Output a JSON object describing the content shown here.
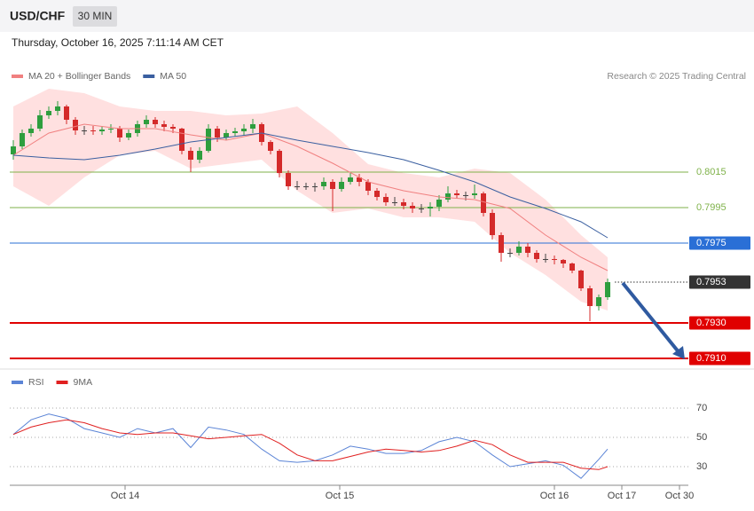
{
  "header": {
    "symbol": "USD/CHF",
    "interval": "30 MIN",
    "timestamp": "Thursday, October 16, 2025 7:11:14 AM CET"
  },
  "source": "Research © 2025 Trading Central",
  "chart_data": [
    {
      "type": "candlestick",
      "up_color": "#2e9e3e",
      "down_color": "#d42a2a",
      "flat_color": "#444444",
      "xlim": [
        -0.4,
        76.1
      ],
      "ylim": [
        0.7907,
        0.8062
      ],
      "x": [
        0,
        1,
        2,
        3,
        4,
        5,
        6,
        7,
        8,
        9,
        10,
        11,
        12,
        13,
        14,
        15,
        16,
        17,
        18,
        19,
        20,
        21,
        22,
        23,
        24,
        25,
        26,
        27,
        28,
        29,
        30,
        31,
        32,
        33,
        34,
        35,
        36,
        37,
        38,
        39,
        40,
        41,
        42,
        43,
        44,
        45,
        46,
        47,
        48,
        49,
        50,
        51,
        52,
        53,
        54,
        55,
        56,
        57,
        58,
        59,
        60,
        61,
        62,
        63,
        64,
        65,
        66,
        67
      ],
      "open": [
        0.8025,
        0.80295,
        0.8037,
        0.80395,
        0.8047,
        0.80495,
        0.8052,
        0.80445,
        0.80385,
        0.80385,
        0.8038,
        0.8039,
        0.80395,
        0.80345,
        0.8037,
        0.8042,
        0.80445,
        0.8042,
        0.80405,
        0.80395,
        0.8027,
        0.8022,
        0.8027,
        0.80395,
        0.80345,
        0.8037,
        0.8038,
        0.80395,
        0.8042,
        0.8032,
        0.8027,
        0.80145,
        0.8007,
        0.8007,
        0.8007,
        0.8007,
        0.80095,
        0.80055,
        0.80095,
        0.8012,
        0.80095,
        0.80045,
        0.8001,
        0.7998,
        0.7998,
        0.7996,
        0.79945,
        0.79945,
        0.79955,
        0.79995,
        0.8003,
        0.8002,
        0.8002,
        0.8003,
        0.7992,
        0.79795,
        0.79695,
        0.79695,
        0.7973,
        0.79695,
        0.7966,
        0.7966,
        0.79655,
        0.79635,
        0.79595,
        0.79495,
        0.79395,
        0.79445
      ],
      "high": [
        0.8033,
        0.8039,
        0.8042,
        0.805,
        0.8052,
        0.8055,
        0.8053,
        0.8046,
        0.8041,
        0.8041,
        0.8041,
        0.8042,
        0.8041,
        0.8039,
        0.8044,
        0.8047,
        0.8046,
        0.8044,
        0.8042,
        0.804,
        0.8029,
        0.8029,
        0.8042,
        0.8041,
        0.8039,
        0.804,
        0.8042,
        0.8045,
        0.8043,
        0.8033,
        0.8028,
        0.8016,
        0.801,
        0.8009,
        0.8009,
        0.8012,
        0.8011,
        0.8012,
        0.8015,
        0.8014,
        0.8011,
        0.8006,
        0.8003,
        0.8001,
        0.8,
        0.7998,
        0.7997,
        0.7998,
        0.8002,
        0.8007,
        0.8005,
        0.8004,
        0.8008,
        0.8004,
        0.7994,
        0.7981,
        0.7972,
        0.7976,
        0.7975,
        0.7971,
        0.7969,
        0.7968,
        0.7966,
        0.7964,
        0.796,
        0.7951,
        0.7946,
        0.7955
      ],
      "low": [
        0.8022,
        0.8028,
        0.8035,
        0.8038,
        0.8045,
        0.8047,
        0.8042,
        0.8036,
        0.8036,
        0.8036,
        0.8036,
        0.8037,
        0.8032,
        0.8033,
        0.8035,
        0.804,
        0.804,
        0.8038,
        0.8037,
        0.8025,
        0.8015,
        0.802,
        0.8026,
        0.8032,
        0.8033,
        0.8035,
        0.8036,
        0.8037,
        0.803,
        0.8025,
        0.8012,
        0.8005,
        0.8005,
        0.8005,
        0.8004,
        0.8005,
        0.7993,
        0.8004,
        0.8008,
        0.8007,
        0.8002,
        0.7999,
        0.7996,
        0.7996,
        0.7994,
        0.7992,
        0.7992,
        0.799,
        0.7993,
        0.7998,
        0.8,
        0.7999,
        0.8,
        0.799,
        0.7977,
        0.79645,
        0.7967,
        0.7968,
        0.7967,
        0.7964,
        0.7964,
        0.7963,
        0.7961,
        0.7958,
        0.7948,
        0.7931,
        0.7937,
        0.7943
      ],
      "close": [
        0.80295,
        0.8037,
        0.80395,
        0.8047,
        0.80495,
        0.8052,
        0.80445,
        0.80385,
        0.80385,
        0.8038,
        0.8039,
        0.80395,
        0.80345,
        0.8037,
        0.8042,
        0.80445,
        0.8042,
        0.80405,
        0.80395,
        0.8027,
        0.8022,
        0.8027,
        0.80395,
        0.80345,
        0.8037,
        0.8038,
        0.80395,
        0.8042,
        0.8032,
        0.8027,
        0.80145,
        0.8007,
        0.8007,
        0.8007,
        0.8007,
        0.80095,
        0.80055,
        0.80095,
        0.8012,
        0.80095,
        0.80045,
        0.8001,
        0.7998,
        0.7998,
        0.7996,
        0.79945,
        0.79945,
        0.79955,
        0.79995,
        0.8003,
        0.8002,
        0.8002,
        0.8003,
        0.7992,
        0.79795,
        0.79695,
        0.79695,
        0.7973,
        0.79695,
        0.7966,
        0.7966,
        0.79655,
        0.79635,
        0.79595,
        0.79495,
        0.79395,
        0.79445,
        0.7953
      ],
      "series": [
        {
          "name": "MA 20 + Bollinger Bands",
          "color": "#f08080",
          "band_color": "#ffd6d6",
          "x": [
            0,
            4,
            8,
            12,
            16,
            20,
            24,
            28,
            32,
            36,
            40,
            44,
            48,
            52,
            56,
            60,
            64,
            67
          ],
          "values": [
            0.80245,
            0.8037,
            0.8042,
            0.80395,
            0.80395,
            0.8036,
            0.8033,
            0.8037,
            0.80295,
            0.802,
            0.80095,
            0.80045,
            0.8001,
            0.79995,
            0.79945,
            0.79795,
            0.7967,
            0.79595
          ],
          "upper": [
            0.8052,
            0.8062,
            0.80595,
            0.8052,
            0.80495,
            0.80495,
            0.8047,
            0.8048,
            0.8052,
            0.8037,
            0.80195,
            0.80145,
            0.8012,
            0.8017,
            0.80145,
            0.79995,
            0.79795,
            0.7967
          ],
          "lower": [
            0.8007,
            0.7996,
            0.8012,
            0.80245,
            0.8027,
            0.8017,
            0.80195,
            0.8022,
            0.80045,
            0.7992,
            0.79945,
            0.79895,
            0.79895,
            0.7987,
            0.79695,
            0.7957,
            0.7942,
            0.7937
          ]
        },
        {
          "name": "MA 50",
          "color": "#3a5fa0",
          "x": [
            0,
            4,
            8,
            12,
            16,
            20,
            24,
            28,
            32,
            36,
            40,
            44,
            48,
            52,
            56,
            60,
            64,
            67
          ],
          "values": [
            0.80245,
            0.8023,
            0.8022,
            0.80245,
            0.8028,
            0.8032,
            0.80345,
            0.8037,
            0.8033,
            0.80295,
            0.8026,
            0.8022,
            0.8016,
            0.80095,
            0.8001,
            0.79945,
            0.7987,
            0.7978
          ]
        }
      ],
      "levels": [
        {
          "value": 0.8015,
          "color": "#7fb24a",
          "style": "thin"
        },
        {
          "value": 0.7995,
          "color": "#7fb24a",
          "style": "thin"
        },
        {
          "value": 0.7975,
          "color": "#2a6fd6",
          "style": "box"
        },
        {
          "value": 0.7953,
          "color": "#333333",
          "style": "dotted"
        },
        {
          "value": 0.793,
          "label": "0.7930",
          "color": "#e00000",
          "style": "thick"
        },
        {
          "value": 0.791,
          "label": "0.7910",
          "color": "#e00000",
          "style": "thick"
        }
      ]
    },
    {
      "type": "line",
      "xlim": [
        -0.4,
        76.1
      ],
      "ylim": [
        18.5,
        94.2
      ],
      "yticks": [
        70,
        50,
        30
      ],
      "grid": true,
      "xticks": [
        {
          "value": 12.6,
          "label": "Oct 14"
        },
        {
          "value": 36.8,
          "label": "Oct 15"
        },
        {
          "value": 61,
          "label": "Oct 16"
        },
        {
          "value": 68.6,
          "label": "Oct 17"
        },
        {
          "value": 75.1,
          "label": "Oct 30"
        }
      ],
      "series": [
        {
          "name": "RSI",
          "color": "#5b84d6",
          "x": [
            0,
            2,
            4,
            6,
            8,
            10,
            12,
            14,
            16,
            18,
            20,
            22,
            24,
            26,
            28,
            30,
            32,
            34,
            36,
            38,
            40,
            42,
            44,
            46,
            48,
            50,
            52,
            54,
            56,
            58,
            60,
            62,
            64,
            66,
            67
          ],
          "values": [
            52,
            62,
            66,
            63,
            56,
            53,
            50,
            56,
            53,
            56,
            43,
            57,
            55,
            52,
            42,
            34,
            33,
            34,
            38,
            44,
            42,
            39,
            39,
            41,
            47,
            50,
            47,
            38,
            30,
            32,
            34,
            31,
            22,
            35,
            42
          ]
        },
        {
          "name": "9MA",
          "color": "#e02020",
          "x": [
            0,
            2,
            4,
            6,
            8,
            10,
            12,
            14,
            16,
            18,
            20,
            22,
            24,
            26,
            28,
            30,
            32,
            34,
            36,
            38,
            40,
            42,
            44,
            46,
            48,
            50,
            52,
            54,
            56,
            58,
            60,
            62,
            64,
            66,
            67
          ],
          "values": [
            52,
            57,
            60,
            62,
            60,
            56,
            53,
            52,
            53,
            53,
            51,
            49,
            50,
            51,
            52,
            46,
            38,
            34,
            34,
            37,
            40,
            42,
            41,
            40,
            41,
            44,
            48,
            45,
            38,
            33,
            33,
            33,
            29,
            28,
            30
          ]
        }
      ]
    }
  ]
}
